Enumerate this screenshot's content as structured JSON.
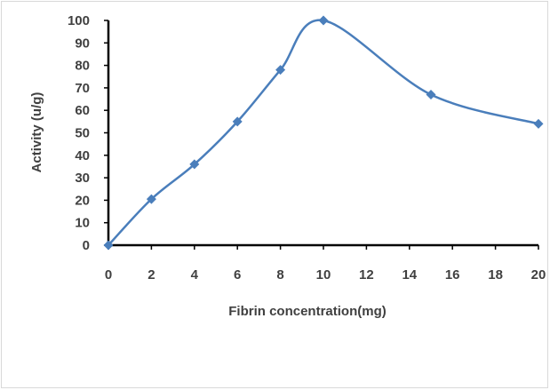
{
  "chart_data": {
    "type": "line",
    "x": [
      0,
      2,
      4,
      6,
      8,
      10,
      15,
      20
    ],
    "series": [
      {
        "values": [
          0,
          20.5,
          36,
          55,
          78,
          100,
          67,
          54
        ]
      }
    ],
    "title": "",
    "xlabel": "Fibrin concentration(mg)",
    "ylabel": "Activity (u/g)",
    "xlim": [
      0,
      20
    ],
    "ylim": [
      0,
      100
    ],
    "x_ticks": [
      "0",
      "2",
      "4",
      "6",
      "8",
      "10",
      "12",
      "14",
      "16",
      "18",
      "20"
    ],
    "y_ticks": [
      "0",
      "10",
      "20",
      "30",
      "40",
      "50",
      "60",
      "70",
      "80",
      "90",
      "100"
    ],
    "grid": false,
    "legend": "none",
    "smooth": true,
    "marker": "diamond",
    "series_color": "#4a7ebb",
    "axis_color": "#000000",
    "text_color": "#404040"
  }
}
